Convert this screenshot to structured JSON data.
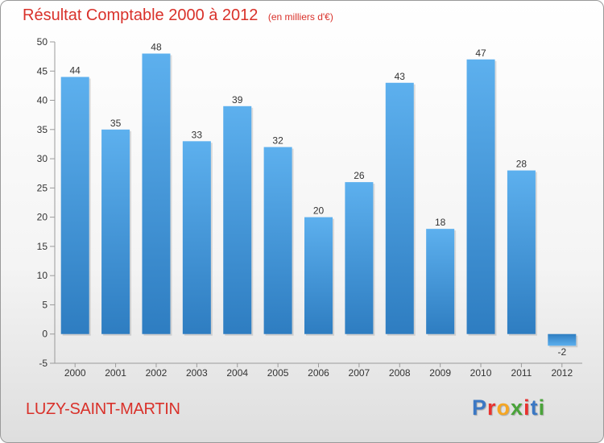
{
  "chart_data": {
    "type": "bar",
    "title": "Résultat Comptable 2000 à 2012",
    "subtitle": "(en milliers d'€)",
    "categories": [
      "2000",
      "2001",
      "2002",
      "2003",
      "2004",
      "2005",
      "2006",
      "2007",
      "2008",
      "2009",
      "2010",
      "2011",
      "2012"
    ],
    "values": [
      44,
      35,
      48,
      33,
      39,
      32,
      20,
      26,
      43,
      18,
      47,
      28,
      -2
    ],
    "ylim": [
      -5,
      50
    ],
    "yticks": [
      -5,
      0,
      5,
      10,
      15,
      20,
      25,
      30,
      35,
      40,
      45,
      50
    ],
    "grid": false,
    "bar_color": "#4a9fe0"
  },
  "footer": {
    "commune": "LUZY-SAINT-MARTIN",
    "brand": "Proxiti",
    "brand_colors": [
      "#3b78c4",
      "#e8322f",
      "#f5a623",
      "#4aa33a",
      "#e8322f",
      "#3b78c4",
      "#4aa33a"
    ]
  },
  "colors": {
    "accent": "#d9312a"
  }
}
